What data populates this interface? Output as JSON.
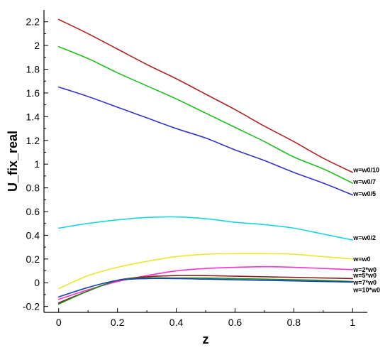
{
  "chart_data": {
    "type": "line",
    "title": "",
    "xlabel": "z",
    "ylabel": "U_fix_real",
    "xlim": [
      -0.05,
      1.05
    ],
    "ylim": [
      -0.25,
      2.3
    ],
    "grid": false,
    "x_ticks": [
      {
        "value": 0,
        "label": "0"
      },
      {
        "value": 0.2,
        "label": "0.2"
      },
      {
        "value": 0.4,
        "label": "0.4"
      },
      {
        "value": 0.6,
        "label": "0.6"
      },
      {
        "value": 0.8,
        "label": "0.8"
      },
      {
        "value": 1,
        "label": "1"
      }
    ],
    "y_ticks": [
      {
        "value": -0.2,
        "label": "-0.2"
      },
      {
        "value": 0,
        "label": "0"
      },
      {
        "value": 0.2,
        "label": "0.2"
      },
      {
        "value": 0.4,
        "label": "0.4"
      },
      {
        "value": 0.6,
        "label": "0.6"
      },
      {
        "value": 0.8,
        "label": "0.8"
      },
      {
        "value": 1,
        "label": "1"
      },
      {
        "value": 1.2,
        "label": "1.2"
      },
      {
        "value": 1.4,
        "label": "1.4"
      },
      {
        "value": 1.6,
        "label": "1.6"
      },
      {
        "value": 1.8,
        "label": "1.8"
      },
      {
        "value": 2,
        "label": "2"
      },
      {
        "value": 2.2,
        "label": "2.2"
      }
    ],
    "x": [
      0,
      0.1,
      0.2,
      0.3,
      0.4,
      0.5,
      0.6,
      0.7,
      0.8,
      0.9,
      1.0
    ],
    "series": [
      {
        "name": "w=w0/10",
        "color": "#b22222",
        "label_value": 0.95,
        "values": [
          2.22,
          2.1,
          1.97,
          1.84,
          1.72,
          1.59,
          1.46,
          1.32,
          1.19,
          1.05,
          0.93
        ]
      },
      {
        "name": "w=w0/7",
        "color": "#1fbf1f",
        "label_value": 0.85,
        "values": [
          1.99,
          1.89,
          1.77,
          1.66,
          1.55,
          1.43,
          1.31,
          1.19,
          1.06,
          0.96,
          0.84
        ]
      },
      {
        "name": "w=w0/5",
        "color": "#3333cc",
        "label_value": 0.75,
        "values": [
          1.65,
          1.57,
          1.48,
          1.39,
          1.3,
          1.22,
          1.12,
          1.03,
          0.93,
          0.84,
          0.74
        ]
      },
      {
        "name": "w=w0/2",
        "color": "#19d5e0",
        "label_value": 0.38,
        "values": [
          0.46,
          0.5,
          0.53,
          0.55,
          0.555,
          0.54,
          0.51,
          0.49,
          0.46,
          0.41,
          0.36
        ]
      },
      {
        "name": "w=w0",
        "color": "#e8e830",
        "label_value": 0.2,
        "values": [
          -0.05,
          0.06,
          0.13,
          0.18,
          0.22,
          0.24,
          0.245,
          0.245,
          0.24,
          0.22,
          0.2
        ]
      },
      {
        "name": "w=2*w0",
        "color": "#ff33cc",
        "label_value": 0.11,
        "values": [
          -0.14,
          -0.06,
          0.01,
          0.06,
          0.1,
          0.12,
          0.13,
          0.135,
          0.13,
          0.12,
          0.11
        ]
      },
      {
        "name": "w=5*w0",
        "color": "#8b1a1a",
        "label_value": 0.06,
        "values": [
          -0.17,
          -0.07,
          0.02,
          0.05,
          0.06,
          0.06,
          0.055,
          0.05,
          0.045,
          0.04,
          0.035
        ]
      },
      {
        "name": "w=7*w0",
        "color": "#1a8f1a",
        "label_value": 0.0,
        "values": [
          -0.18,
          -0.07,
          0.02,
          0.04,
          0.04,
          0.04,
          0.035,
          0.03,
          0.025,
          0.02,
          0.01
        ]
      },
      {
        "name": "w=10*w0",
        "color": "#1a3fbf",
        "label_value": -0.06,
        "values": [
          -0.12,
          -0.04,
          0.02,
          0.035,
          0.035,
          0.03,
          0.025,
          0.02,
          0.015,
          0.01,
          0.005
        ]
      }
    ]
  }
}
